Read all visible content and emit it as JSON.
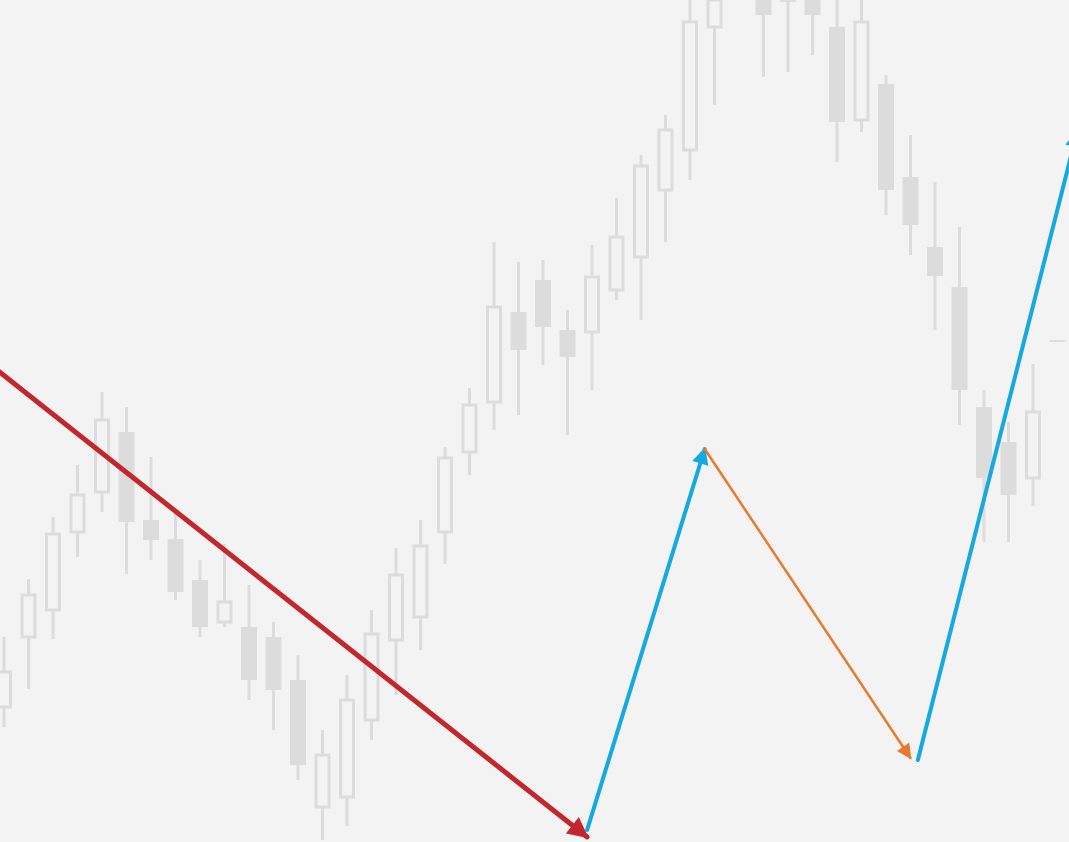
{
  "chart_data": {
    "type": "candlestick",
    "title": "",
    "xlabel": "",
    "ylabel": "",
    "grid": false,
    "ylim": [
      0,
      842
    ],
    "colors": {
      "background": "#f3f3f3",
      "candle": "#dcdcdc",
      "candle_bull_fill": "#f3f3f3",
      "impulse_down": "#c4262d",
      "wave_up": "#14a9e1",
      "wave_down": "#e57a2f"
    },
    "candles": [
      {
        "index": 0,
        "open": 135,
        "close": 170,
        "high": 205,
        "low": 115
      },
      {
        "index": 1,
        "open": 205,
        "close": 247,
        "high": 263,
        "low": 153
      },
      {
        "index": 2,
        "open": 232,
        "close": 308,
        "high": 325,
        "low": 203
      },
      {
        "index": 3,
        "open": 310,
        "close": 347,
        "high": 377,
        "low": 285
      },
      {
        "index": 4,
        "open": 350,
        "close": 422,
        "high": 450,
        "low": 330
      },
      {
        "index": 5,
        "open": 410,
        "close": 320,
        "high": 435,
        "low": 268
      },
      {
        "index": 6,
        "open": 322,
        "close": 302,
        "high": 385,
        "low": 282
      },
      {
        "index": 7,
        "open": 303,
        "close": 250,
        "high": 330,
        "low": 242
      },
      {
        "index": 8,
        "open": 262,
        "close": 215,
        "high": 282,
        "low": 205
      },
      {
        "index": 9,
        "open": 220,
        "close": 240,
        "high": 298,
        "low": 215
      },
      {
        "index": 10,
        "open": 215,
        "close": 162,
        "high": 257,
        "low": 142
      },
      {
        "index": 11,
        "open": 205,
        "close": 152,
        "high": 220,
        "low": 112
      },
      {
        "index": 12,
        "open": 162,
        "close": 77,
        "high": 187,
        "low": 62
      },
      {
        "index": 13,
        "open": 35,
        "close": 87,
        "high": 112,
        "low": 2
      },
      {
        "index": 14,
        "open": 45,
        "close": 142,
        "high": 167,
        "low": 16
      },
      {
        "index": 15,
        "open": 122,
        "close": 208,
        "high": 232,
        "low": 102
      },
      {
        "index": 16,
        "open": 202,
        "close": 267,
        "high": 294,
        "low": 147
      },
      {
        "index": 17,
        "open": 225,
        "close": 296,
        "high": 322,
        "low": 192
      },
      {
        "index": 18,
        "open": 310,
        "close": 384,
        "high": 395,
        "low": 278
      },
      {
        "index": 19,
        "open": 390,
        "close": 437,
        "high": 454,
        "low": 367
      },
      {
        "index": 20,
        "open": 440,
        "close": 535,
        "high": 600,
        "low": 412
      },
      {
        "index": 21,
        "open": 530,
        "close": 492,
        "high": 580,
        "low": 427
      },
      {
        "index": 22,
        "open": 562,
        "close": 515,
        "high": 582,
        "low": 477
      },
      {
        "index": 23,
        "open": 512,
        "close": 485,
        "high": 532,
        "low": 407
      },
      {
        "index": 24,
        "open": 510,
        "close": 565,
        "high": 597,
        "low": 452
      },
      {
        "index": 25,
        "open": 552,
        "close": 605,
        "high": 644,
        "low": 542
      },
      {
        "index": 26,
        "open": 585,
        "close": 676,
        "high": 687,
        "low": 522
      },
      {
        "index": 27,
        "open": 652,
        "close": 712,
        "high": 727,
        "low": 600
      },
      {
        "index": 28,
        "open": 692,
        "close": 820,
        "high": 842,
        "low": 662
      },
      {
        "index": 29,
        "open": 815,
        "close": 842,
        "high": 842,
        "low": 737
      },
      {
        "index": 31,
        "open": 842,
        "close": 827,
        "high": 842,
        "low": 765
      },
      {
        "index": 32,
        "open": 842,
        "close": 840,
        "high": 842,
        "low": 770
      },
      {
        "index": 33,
        "open": 842,
        "close": 827,
        "high": 842,
        "low": 787
      },
      {
        "index": 34,
        "open": 815,
        "close": 720,
        "high": 842,
        "low": 680
      },
      {
        "index": 35,
        "open": 722,
        "close": 820,
        "high": 842,
        "low": 710
      },
      {
        "index": 36,
        "open": 758,
        "close": 652,
        "high": 767,
        "low": 627
      },
      {
        "index": 37,
        "open": 665,
        "close": 617,
        "high": 707,
        "low": 587
      },
      {
        "index": 38,
        "open": 595,
        "close": 566,
        "high": 660,
        "low": 512
      },
      {
        "index": 39,
        "open": 555,
        "close": 452,
        "high": 615,
        "low": 417
      },
      {
        "index": 40,
        "open": 435,
        "close": 364,
        "high": 452,
        "low": 300
      },
      {
        "index": 41,
        "open": 400,
        "close": 347,
        "high": 420,
        "low": 300
      },
      {
        "index": 42,
        "open": 364,
        "close": 430,
        "high": 478,
        "low": 336
      },
      {
        "index": 43,
        "open": 502,
        "close": 502,
        "high": 502,
        "low": 502
      }
    ],
    "waves": [
      {
        "role": "impulse-down",
        "color": "#c4262d",
        "from": [
          -18.8,
          831
        ],
        "to": [
          23.8,
          5
        ],
        "width": 5,
        "head": "large"
      },
      {
        "role": "wave-up-1",
        "color": "#14a9e1",
        "from": [
          23.8,
          12
        ],
        "to": [
          28.6,
          393
        ],
        "width": 4,
        "head": "large"
      },
      {
        "role": "wave-down",
        "color": "#e57a2f",
        "from": [
          28.6,
          393
        ],
        "to": [
          37.0,
          84
        ],
        "width": 2.5,
        "head": "small"
      },
      {
        "role": "wave-up-2",
        "color": "#14a9e1",
        "from": [
          37.3,
          82
        ],
        "to": [
          43.8,
          710
        ],
        "width": 4,
        "head": "large"
      }
    ]
  }
}
